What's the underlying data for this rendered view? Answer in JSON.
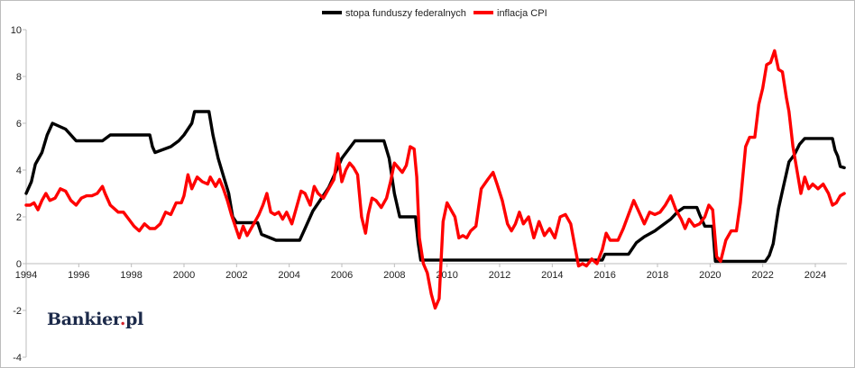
{
  "logo": {
    "part1": "Bankier",
    "dot": ".",
    "part2": "pl"
  },
  "chart_data": {
    "type": "line",
    "xlim": [
      1994,
      2025.2
    ],
    "ylim": [
      -4,
      10
    ],
    "x_ticks": [
      1994,
      1996,
      1998,
      2000,
      2002,
      2004,
      2006,
      2008,
      2010,
      2012,
      2014,
      2016,
      2018,
      2020,
      2022,
      2024
    ],
    "y_ticks": [
      -4,
      -2,
      0,
      2,
      4,
      6,
      8,
      10
    ],
    "grid": false,
    "legend_position": "top-center",
    "colors": {
      "fed": "#000000",
      "cpi": "#ff0000",
      "axis": "#bdbdbd"
    },
    "series": [
      {
        "name": "stopa funduszy federalnych",
        "points": [
          [
            1994.0,
            3.0
          ],
          [
            1994.2,
            3.5
          ],
          [
            1994.35,
            4.25
          ],
          [
            1994.6,
            4.75
          ],
          [
            1994.8,
            5.5
          ],
          [
            1995.0,
            6.0
          ],
          [
            1995.5,
            5.75
          ],
          [
            1995.9,
            5.25
          ],
          [
            1996.9,
            5.25
          ],
          [
            1997.2,
            5.5
          ],
          [
            1998.7,
            5.5
          ],
          [
            1998.8,
            5.0
          ],
          [
            1998.9,
            4.75
          ],
          [
            1999.5,
            5.0
          ],
          [
            1999.8,
            5.25
          ],
          [
            2000.0,
            5.5
          ],
          [
            2000.3,
            6.0
          ],
          [
            2000.4,
            6.5
          ],
          [
            2000.95,
            6.5
          ],
          [
            2001.1,
            5.5
          ],
          [
            2001.3,
            4.5
          ],
          [
            2001.5,
            3.75
          ],
          [
            2001.7,
            3.0
          ],
          [
            2001.85,
            2.0
          ],
          [
            2002.0,
            1.75
          ],
          [
            2002.8,
            1.75
          ],
          [
            2002.95,
            1.25
          ],
          [
            2003.5,
            1.0
          ],
          [
            2004.4,
            1.0
          ],
          [
            2004.6,
            1.5
          ],
          [
            2004.9,
            2.25
          ],
          [
            2005.2,
            2.75
          ],
          [
            2005.5,
            3.25
          ],
          [
            2005.8,
            4.0
          ],
          [
            2006.0,
            4.5
          ],
          [
            2006.5,
            5.25
          ],
          [
            2007.6,
            5.25
          ],
          [
            2007.8,
            4.5
          ],
          [
            2008.0,
            3.0
          ],
          [
            2008.2,
            2.0
          ],
          [
            2008.8,
            2.0
          ],
          [
            2008.9,
            0.9
          ],
          [
            2009.0,
            0.15
          ],
          [
            2015.9,
            0.15
          ],
          [
            2016.0,
            0.4
          ],
          [
            2016.9,
            0.4
          ],
          [
            2017.2,
            0.9
          ],
          [
            2017.5,
            1.15
          ],
          [
            2017.9,
            1.4
          ],
          [
            2018.2,
            1.65
          ],
          [
            2018.5,
            1.9
          ],
          [
            2018.75,
            2.2
          ],
          [
            2019.0,
            2.4
          ],
          [
            2019.5,
            2.4
          ],
          [
            2019.6,
            2.1
          ],
          [
            2019.8,
            1.6
          ],
          [
            2020.1,
            1.6
          ],
          [
            2020.2,
            0.1
          ],
          [
            2022.1,
            0.1
          ],
          [
            2022.25,
            0.35
          ],
          [
            2022.4,
            0.85
          ],
          [
            2022.5,
            1.6
          ],
          [
            2022.6,
            2.35
          ],
          [
            2022.75,
            3.1
          ],
          [
            2022.9,
            3.85
          ],
          [
            2023.0,
            4.35
          ],
          [
            2023.2,
            4.65
          ],
          [
            2023.4,
            5.1
          ],
          [
            2023.6,
            5.35
          ],
          [
            2024.65,
            5.35
          ],
          [
            2024.75,
            4.85
          ],
          [
            2024.85,
            4.6
          ],
          [
            2024.95,
            4.15
          ],
          [
            2025.1,
            4.1
          ]
        ]
      },
      {
        "name": "inflacja CPI",
        "points": [
          [
            1994.0,
            2.5
          ],
          [
            1994.15,
            2.5
          ],
          [
            1994.3,
            2.6
          ],
          [
            1994.45,
            2.3
          ],
          [
            1994.6,
            2.7
          ],
          [
            1994.75,
            3.0
          ],
          [
            1994.9,
            2.7
          ],
          [
            1995.1,
            2.8
          ],
          [
            1995.3,
            3.2
          ],
          [
            1995.5,
            3.1
          ],
          [
            1995.7,
            2.7
          ],
          [
            1995.9,
            2.5
          ],
          [
            1996.1,
            2.8
          ],
          [
            1996.3,
            2.9
          ],
          [
            1996.5,
            2.9
          ],
          [
            1996.7,
            3.0
          ],
          [
            1996.9,
            3.3
          ],
          [
            1997.0,
            3.0
          ],
          [
            1997.2,
            2.5
          ],
          [
            1997.5,
            2.2
          ],
          [
            1997.7,
            2.2
          ],
          [
            1997.9,
            1.9
          ],
          [
            1998.1,
            1.6
          ],
          [
            1998.3,
            1.4
          ],
          [
            1998.5,
            1.7
          ],
          [
            1998.7,
            1.5
          ],
          [
            1998.9,
            1.5
          ],
          [
            1999.1,
            1.7
          ],
          [
            1999.3,
            2.2
          ],
          [
            1999.5,
            2.1
          ],
          [
            1999.7,
            2.6
          ],
          [
            1999.9,
            2.6
          ],
          [
            2000.0,
            2.9
          ],
          [
            2000.15,
            3.8
          ],
          [
            2000.3,
            3.2
          ],
          [
            2000.5,
            3.7
          ],
          [
            2000.7,
            3.5
          ],
          [
            2000.9,
            3.4
          ],
          [
            2001.0,
            3.7
          ],
          [
            2001.2,
            3.3
          ],
          [
            2001.35,
            3.6
          ],
          [
            2001.5,
            3.2
          ],
          [
            2001.65,
            2.7
          ],
          [
            2001.8,
            2.1
          ],
          [
            2001.95,
            1.6
          ],
          [
            2002.1,
            1.1
          ],
          [
            2002.25,
            1.6
          ],
          [
            2002.4,
            1.2
          ],
          [
            2002.55,
            1.5
          ],
          [
            2002.7,
            1.8
          ],
          [
            2002.85,
            2.1
          ],
          [
            2003.0,
            2.5
          ],
          [
            2003.15,
            3.0
          ],
          [
            2003.3,
            2.2
          ],
          [
            2003.45,
            2.1
          ],
          [
            2003.6,
            2.2
          ],
          [
            2003.75,
            1.9
          ],
          [
            2003.9,
            2.2
          ],
          [
            2004.1,
            1.7
          ],
          [
            2004.25,
            2.3
          ],
          [
            2004.45,
            3.1
          ],
          [
            2004.6,
            3.0
          ],
          [
            2004.8,
            2.5
          ],
          [
            2004.95,
            3.3
          ],
          [
            2005.1,
            3.0
          ],
          [
            2005.3,
            2.8
          ],
          [
            2005.5,
            3.2
          ],
          [
            2005.7,
            3.6
          ],
          [
            2005.85,
            4.7
          ],
          [
            2006.0,
            3.5
          ],
          [
            2006.15,
            4.0
          ],
          [
            2006.3,
            4.3
          ],
          [
            2006.45,
            4.1
          ],
          [
            2006.6,
            3.8
          ],
          [
            2006.75,
            2.0
          ],
          [
            2006.9,
            1.3
          ],
          [
            2007.0,
            2.1
          ],
          [
            2007.15,
            2.8
          ],
          [
            2007.3,
            2.7
          ],
          [
            2007.5,
            2.4
          ],
          [
            2007.7,
            2.8
          ],
          [
            2007.85,
            3.5
          ],
          [
            2008.0,
            4.3
          ],
          [
            2008.15,
            4.1
          ],
          [
            2008.3,
            3.9
          ],
          [
            2008.45,
            4.2
          ],
          [
            2008.6,
            5.0
          ],
          [
            2008.75,
            4.9
          ],
          [
            2008.85,
            3.7
          ],
          [
            2008.95,
            1.1
          ],
          [
            2009.1,
            0.0
          ],
          [
            2009.25,
            -0.4
          ],
          [
            2009.4,
            -1.3
          ],
          [
            2009.55,
            -1.9
          ],
          [
            2009.7,
            -1.5
          ],
          [
            2009.85,
            1.8
          ],
          [
            2010.0,
            2.6
          ],
          [
            2010.15,
            2.3
          ],
          [
            2010.3,
            2.0
          ],
          [
            2010.45,
            1.1
          ],
          [
            2010.6,
            1.2
          ],
          [
            2010.75,
            1.1
          ],
          [
            2010.9,
            1.4
          ],
          [
            2011.1,
            1.6
          ],
          [
            2011.3,
            3.2
          ],
          [
            2011.55,
            3.6
          ],
          [
            2011.75,
            3.9
          ],
          [
            2011.9,
            3.4
          ],
          [
            2012.1,
            2.7
          ],
          [
            2012.3,
            1.7
          ],
          [
            2012.45,
            1.4
          ],
          [
            2012.6,
            1.7
          ],
          [
            2012.75,
            2.2
          ],
          [
            2012.9,
            1.7
          ],
          [
            2013.1,
            2.0
          ],
          [
            2013.3,
            1.1
          ],
          [
            2013.5,
            1.8
          ],
          [
            2013.7,
            1.2
          ],
          [
            2013.9,
            1.5
          ],
          [
            2014.1,
            1.1
          ],
          [
            2014.3,
            2.0
          ],
          [
            2014.5,
            2.1
          ],
          [
            2014.7,
            1.7
          ],
          [
            2014.85,
            0.8
          ],
          [
            2015.0,
            -0.1
          ],
          [
            2015.15,
            0.0
          ],
          [
            2015.3,
            -0.1
          ],
          [
            2015.5,
            0.2
          ],
          [
            2015.7,
            0.0
          ],
          [
            2015.9,
            0.6
          ],
          [
            2016.05,
            1.3
          ],
          [
            2016.2,
            1.0
          ],
          [
            2016.35,
            1.0
          ],
          [
            2016.5,
            1.0
          ],
          [
            2016.7,
            1.5
          ],
          [
            2016.9,
            2.1
          ],
          [
            2017.1,
            2.7
          ],
          [
            2017.3,
            2.2
          ],
          [
            2017.5,
            1.7
          ],
          [
            2017.7,
            2.2
          ],
          [
            2017.9,
            2.1
          ],
          [
            2018.1,
            2.2
          ],
          [
            2018.3,
            2.5
          ],
          [
            2018.5,
            2.9
          ],
          [
            2018.7,
            2.3
          ],
          [
            2018.9,
            1.9
          ],
          [
            2019.05,
            1.5
          ],
          [
            2019.2,
            1.9
          ],
          [
            2019.4,
            1.6
          ],
          [
            2019.6,
            1.7
          ],
          [
            2019.8,
            2.0
          ],
          [
            2019.95,
            2.5
          ],
          [
            2020.1,
            2.3
          ],
          [
            2020.25,
            0.3
          ],
          [
            2020.4,
            0.1
          ],
          [
            2020.6,
            1.0
          ],
          [
            2020.8,
            1.4
          ],
          [
            2021.0,
            1.4
          ],
          [
            2021.15,
            2.6
          ],
          [
            2021.35,
            5.0
          ],
          [
            2021.5,
            5.4
          ],
          [
            2021.7,
            5.4
          ],
          [
            2021.85,
            6.8
          ],
          [
            2022.0,
            7.5
          ],
          [
            2022.15,
            8.5
          ],
          [
            2022.3,
            8.6
          ],
          [
            2022.45,
            9.1
          ],
          [
            2022.6,
            8.3
          ],
          [
            2022.75,
            8.2
          ],
          [
            2022.9,
            7.1
          ],
          [
            2023.0,
            6.5
          ],
          [
            2023.15,
            5.0
          ],
          [
            2023.3,
            4.0
          ],
          [
            2023.45,
            3.0
          ],
          [
            2023.6,
            3.7
          ],
          [
            2023.75,
            3.2
          ],
          [
            2023.9,
            3.4
          ],
          [
            2024.1,
            3.2
          ],
          [
            2024.3,
            3.4
          ],
          [
            2024.5,
            3.0
          ],
          [
            2024.65,
            2.5
          ],
          [
            2024.8,
            2.6
          ],
          [
            2024.95,
            2.9
          ],
          [
            2025.1,
            3.0
          ]
        ]
      }
    ]
  }
}
